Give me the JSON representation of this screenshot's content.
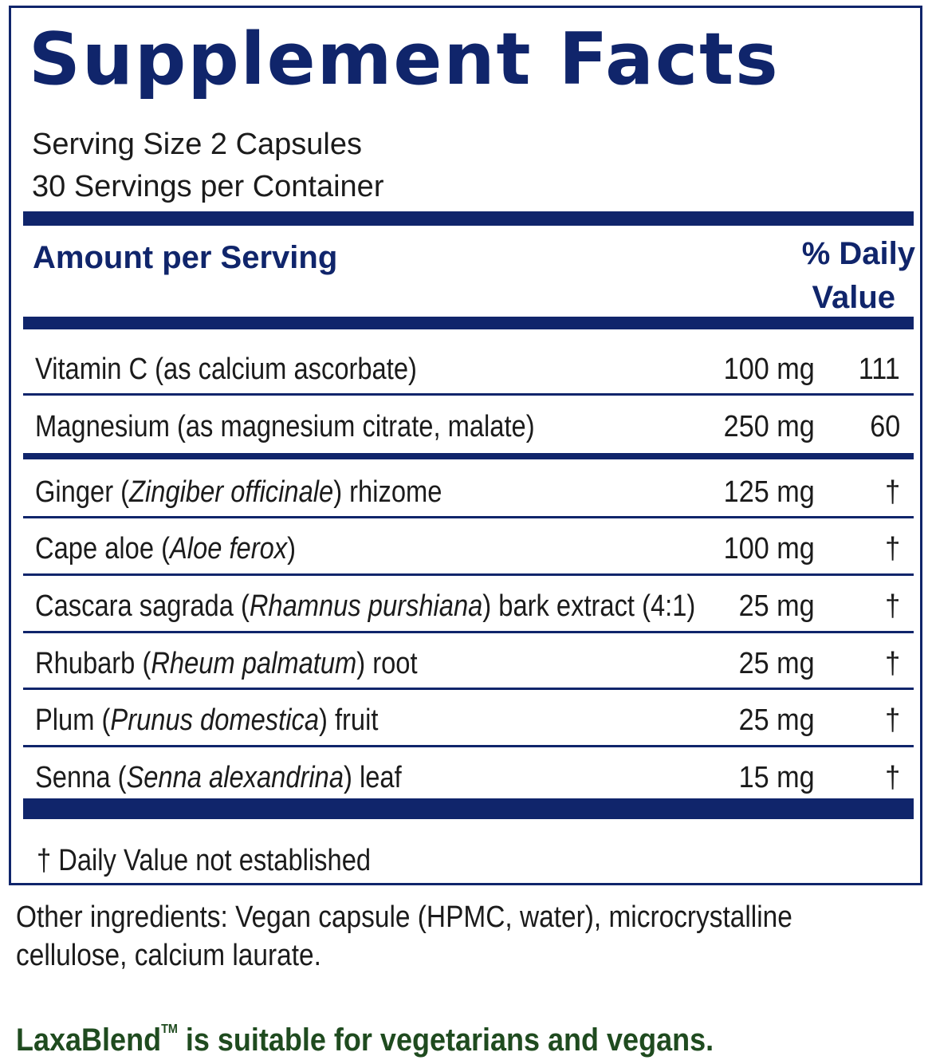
{
  "panel": {
    "title": "Supplement Facts",
    "serving_size": "Serving Size 2 Capsules",
    "servings_per_container": "30 Servings per Container",
    "header_amount": "Amount per Serving",
    "header_dv_line1": "% Daily",
    "header_dv_line2": "Value",
    "rows": [
      {
        "pre": "Vitamin C (as calcium ascorbate)",
        "latin": "",
        "post": "",
        "amount": "100 mg",
        "dv": "111"
      },
      {
        "pre": "Magnesium (as magnesium citrate, malate)",
        "latin": "",
        "post": "",
        "amount": "250 mg",
        "dv": "60"
      },
      {
        "pre": "Ginger (",
        "latin": "Zingiber officinale",
        "post": ") rhizome",
        "amount": "125 mg",
        "dv": "†"
      },
      {
        "pre": "Cape aloe (",
        "latin": "Aloe ferox",
        "post": ")",
        "amount": "100 mg",
        "dv": "†"
      },
      {
        "pre": "Cascara sagrada (",
        "latin": "Rhamnus purshiana",
        "post": ") bark extract (4:1)",
        "amount": "25 mg",
        "dv": "†"
      },
      {
        "pre": "Rhubarb (",
        "latin": "Rheum palmatum",
        "post": ") root",
        "amount": "25 mg",
        "dv": "†"
      },
      {
        "pre": "Plum (",
        "latin": "Prunus domestica",
        "post": ") fruit",
        "amount": "25 mg",
        "dv": "†"
      },
      {
        "pre": "Senna (",
        "latin": "Senna alexandrina",
        "post": ") leaf",
        "amount": "15 mg",
        "dv": "†"
      }
    ],
    "footnote": "† Daily Value not established"
  },
  "other_ingredients": "Other ingredients: Vegan capsule (HPMC, water), microcrystalline cellulose, calcium laurate.",
  "suitability": {
    "brand": "LaxaBlend",
    "trademark": "TM",
    "text": " is suitable for vegetarians and vegans."
  },
  "colors": {
    "panel_blue": "#10256b",
    "text": "#1b1b1b",
    "suitability_green": "#1f4b1f"
  }
}
